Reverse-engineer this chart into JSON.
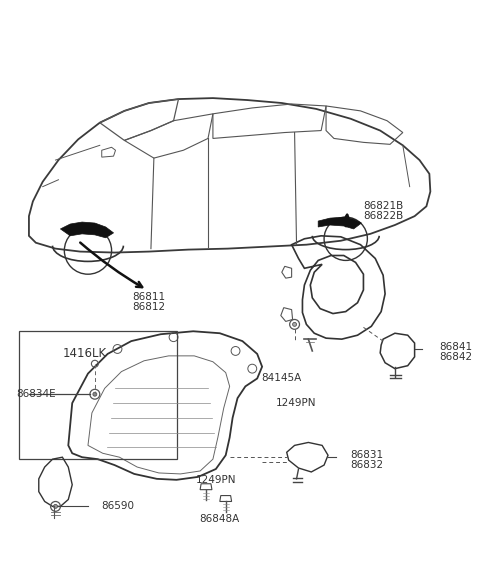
{
  "bg_color": "#ffffff",
  "line_color": "#333333",
  "text_color": "#333333",
  "figsize": [
    4.8,
    5.73
  ],
  "dpi": 100,
  "labels": {
    "86821B": "86821B",
    "86822B": "86822B",
    "86811": "86811",
    "86812": "86812",
    "1416LK": "1416LK",
    "86834E": "86834E",
    "86590": "86590",
    "1249PN_bot": "1249PN",
    "86848A": "86848A",
    "86831": "86831",
    "86832": "86832",
    "84145A": "84145A",
    "1249PN_right": "1249PN",
    "86841": "86841",
    "86842": "86842"
  }
}
